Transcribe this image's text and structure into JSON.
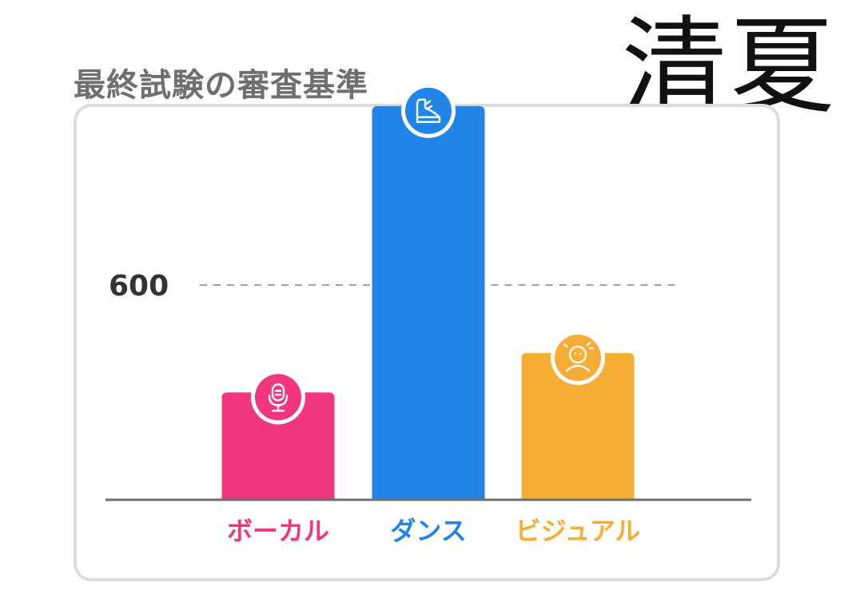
{
  "header": {
    "title": "最終試験の審査基準"
  },
  "annotation": {
    "text": "清夏"
  },
  "chart_data": {
    "type": "bar",
    "categories": [
      "ボーカル",
      "ダンス",
      "ビジュアル"
    ],
    "values": [
      300,
      1100,
      410
    ],
    "colors": [
      "#f0367f",
      "#2185e8",
      "#f5ae33"
    ],
    "icons": [
      "microphone-icon",
      "dance-shoe-icon",
      "face-icon"
    ],
    "reference_line": {
      "value": 600,
      "label": "600",
      "style": "dashed"
    },
    "ylim": [
      0,
      1200
    ],
    "axis_color": "#6e6e6e",
    "title": "最終試験の審査基準",
    "xlabel": "",
    "ylabel": "",
    "grid": false,
    "legend": "none"
  }
}
